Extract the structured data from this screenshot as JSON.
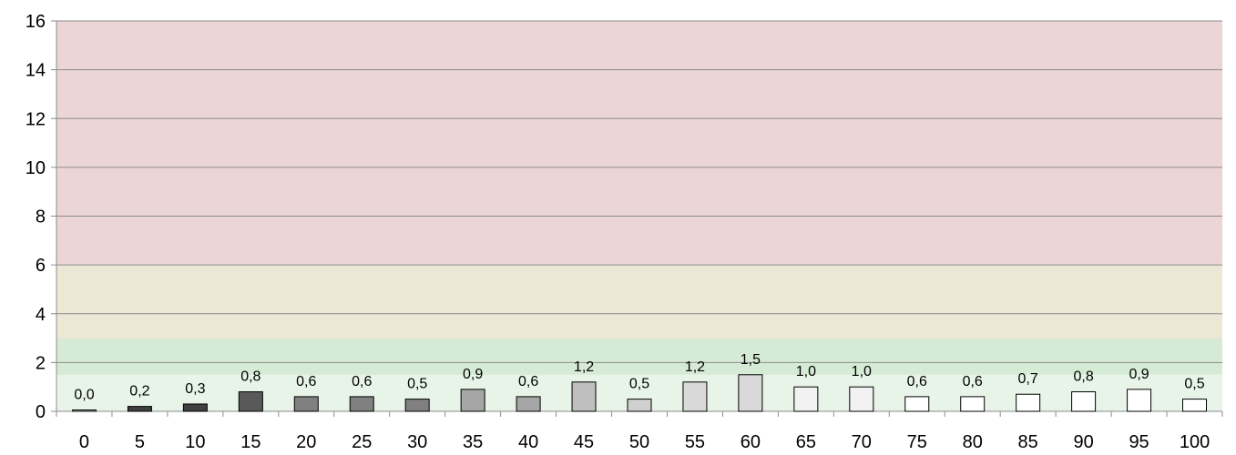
{
  "chart_data": {
    "type": "bar",
    "categories": [
      "0",
      "5",
      "10",
      "15",
      "20",
      "25",
      "30",
      "35",
      "40",
      "45",
      "50",
      "55",
      "60",
      "65",
      "70",
      "75",
      "80",
      "85",
      "90",
      "95",
      "100"
    ],
    "values": [
      0.0,
      0.2,
      0.3,
      0.8,
      0.6,
      0.6,
      0.5,
      0.9,
      0.6,
      1.2,
      0.5,
      1.2,
      1.5,
      1.0,
      1.0,
      0.6,
      0.6,
      0.7,
      0.8,
      0.9,
      0.5
    ],
    "data_labels": [
      "0,0",
      "0,2",
      "0,3",
      "0,8",
      "0,6",
      "0,6",
      "0,5",
      "0,9",
      "0,6",
      "1,2",
      "0,5",
      "1,2",
      "1,5",
      "1,0",
      "1,0",
      "0,6",
      "0,6",
      "0,7",
      "0,8",
      "0,9",
      "0,5"
    ],
    "bar_colors": [
      "#d9d9d9",
      "#404040",
      "#404040",
      "#595959",
      "#808080",
      "#808080",
      "#808080",
      "#a6a6a6",
      "#a6a6a6",
      "#bfbfbf",
      "#d0d0d0",
      "#d9d9d9",
      "#d9d9d9",
      "#f2f2f2",
      "#f2f2f2",
      "#ffffff",
      "#ffffff",
      "#ffffff",
      "#ffffff",
      "#ffffff",
      "#ffffff"
    ],
    "ylim": [
      0,
      16
    ],
    "yticks": [
      "0",
      "2",
      "4",
      "6",
      "8",
      "10",
      "12",
      "14",
      "16"
    ],
    "grid": true,
    "bands": [
      {
        "from": 0,
        "to": 1.5,
        "color": "#e8f4e8"
      },
      {
        "from": 1.5,
        "to": 3,
        "color": "#d5ebd5"
      },
      {
        "from": 3,
        "to": 6,
        "color": "#ede8d6"
      },
      {
        "from": 6,
        "to": 16,
        "color": "#ebd5d5"
      }
    ]
  }
}
